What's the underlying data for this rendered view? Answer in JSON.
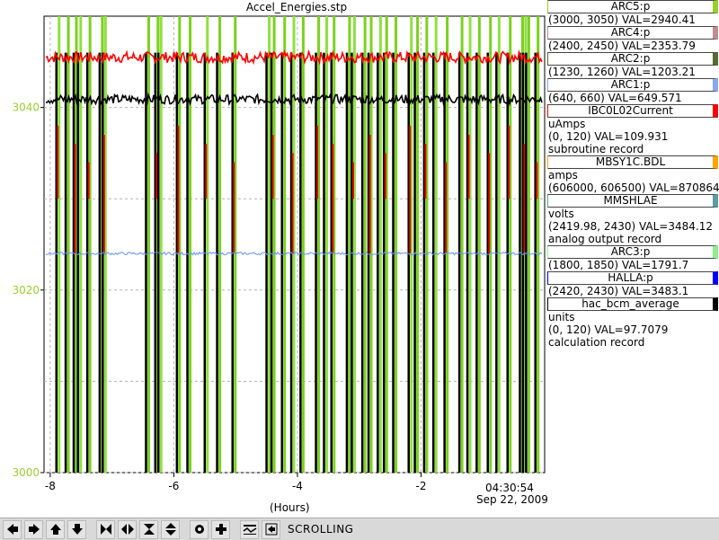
{
  "title": "Accel_Energies.stp",
  "x_axis_label": "(Hours)",
  "time_label": "04:30:54",
  "date_label": "Sep 22, 2009",
  "status": "SCROLLING",
  "legend": [
    {
      "name": "ARC5:p",
      "color": "#9acd32",
      "lines": [
        "(3000, 3050) VAL=2940.41"
      ]
    },
    {
      "name": "ARC4:p",
      "color": "#bc8f8f",
      "lines": [
        "(2400, 2450) VAL=2353.79"
      ]
    },
    {
      "name": "ARC2:p",
      "color": "#556b2f",
      "lines": [
        "(1230, 1260) VAL=1203.21"
      ]
    },
    {
      "name": "ARC1:p",
      "color": "#87aaee",
      "lines": [
        "(640, 660) VAL=649.571"
      ]
    },
    {
      "name": "IBC0L02Current",
      "color": "#ff0000",
      "lines": [
        "uAmps",
        "(0, 120) VAL=109.931",
        "subroutine record"
      ]
    },
    {
      "name": "MBSY1C.BDL",
      "color": "#ffa500",
      "lines": [
        "amps",
        "(606000, 606500) VAL=870864"
      ]
    },
    {
      "name": "MMSHLAE",
      "color": "#5f9ea0",
      "lines": [
        "volts",
        "(2419.98, 2430) VAL=3484.12",
        "analog output record"
      ]
    },
    {
      "name": "ARC3:p",
      "color": "#90ee90",
      "lines": [
        "(1800, 1850) VAL=1791.7"
      ]
    },
    {
      "name": "HALLA:p",
      "color": "#0000ff",
      "lines": [
        "(2420, 2430) VAL=3483.1"
      ]
    },
    {
      "name": "hac_bcm_average",
      "color": "#000000",
      "lines": [
        "units",
        "(0, 120) VAL=97.7079",
        "calculation record"
      ]
    }
  ],
  "toolbar_icons": [
    "arrow-left-icon",
    "arrow-right-icon",
    "arrow-up-icon",
    "arrow-down-icon",
    "zoom-in-horizontal-icon",
    "zoom-out-horizontal-icon",
    "zoom-in-vertical-icon",
    "zoom-out-vertical-icon",
    "record-icon",
    "add-icon",
    "config-icon",
    "export-icon"
  ],
  "chart_data": {
    "type": "line",
    "title": "Accel_Energies.stp",
    "xlabel": "(Hours)",
    "ylabel": "",
    "xlim": [
      -8.1,
      0
    ],
    "ylim": [
      3000,
      3050
    ],
    "x_ticks": [
      -8,
      -6,
      -4,
      -2
    ],
    "y_ticks": [
      3000,
      3020,
      3040
    ],
    "grid": true,
    "legend_position": "right",
    "series": [
      {
        "name": "IBC0L02Current",
        "color": "#ff0000",
        "baseline": 3045.5,
        "noise": 0.6
      },
      {
        "name": "hac_bcm_average",
        "color": "#000000",
        "baseline": 3040.9,
        "noise": 0.5
      },
      {
        "name": "MMSHLAE",
        "color": "#6495ed",
        "baseline": 3024.0,
        "noise": 0.15
      }
    ],
    "beam_trips_hours": [
      -7.9,
      -7.75,
      -7.62,
      -7.55,
      -7.4,
      -7.2,
      -7.15,
      -6.45,
      -6.3,
      -6.25,
      -5.95,
      -5.78,
      -5.5,
      -5.3,
      -5.05,
      -4.5,
      -4.42,
      -4.25,
      -4.1,
      -3.95,
      -3.7,
      -3.57,
      -3.45,
      -3.2,
      -3.12,
      -2.95,
      -2.85,
      -2.7,
      -2.6,
      -2.45,
      -2.2,
      -2.1,
      -1.95,
      -1.8,
      -1.62,
      -1.38,
      -1.25,
      -1.1,
      -0.92,
      -0.78,
      -0.6,
      -0.4,
      -0.35,
      -0.3,
      -0.15
    ]
  }
}
